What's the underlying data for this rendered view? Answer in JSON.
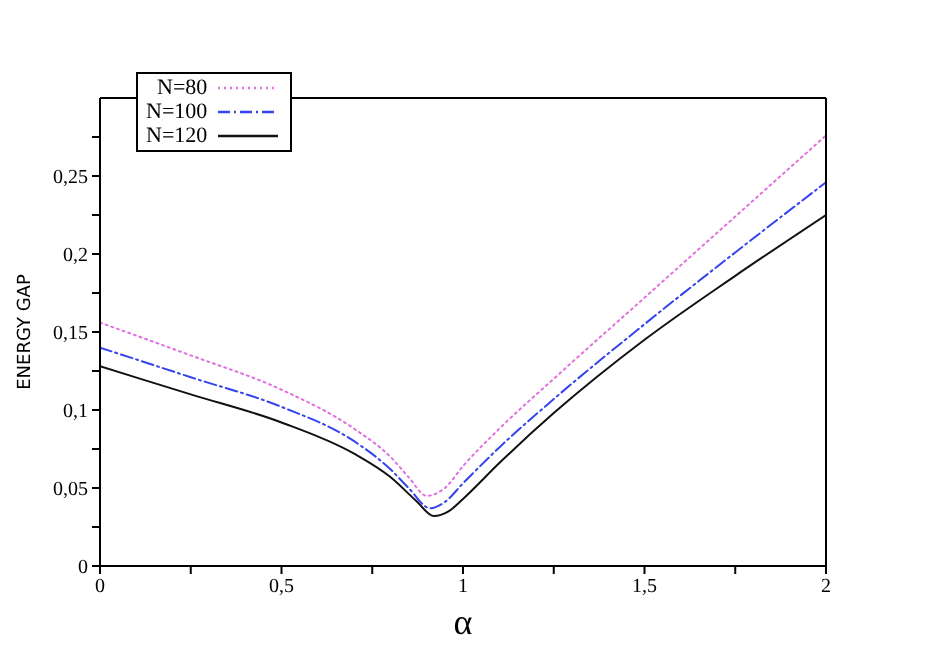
{
  "chart_data": {
    "type": "line",
    "xlabel": "α",
    "ylabel": "ENERGY GAP",
    "xlim": [
      0,
      2
    ],
    "ylim": [
      0,
      0.3
    ],
    "xticks": [
      {
        "value": 0,
        "label": "0"
      },
      {
        "value": 0.25,
        "label": null
      },
      {
        "value": 0.5,
        "label": "0,5"
      },
      {
        "value": 0.75,
        "label": null
      },
      {
        "value": 1,
        "label": "1"
      },
      {
        "value": 1.25,
        "label": null
      },
      {
        "value": 1.5,
        "label": "1,5"
      },
      {
        "value": 1.75,
        "label": null
      },
      {
        "value": 2,
        "label": "2"
      }
    ],
    "yticks": [
      {
        "value": 0,
        "label": "0"
      },
      {
        "value": 0.025,
        "label": null
      },
      {
        "value": 0.05,
        "label": "0,05"
      },
      {
        "value": 0.075,
        "label": null
      },
      {
        "value": 0.1,
        "label": "0,1"
      },
      {
        "value": 0.125,
        "label": null
      },
      {
        "value": 0.15,
        "label": "0,15"
      },
      {
        "value": 0.175,
        "label": null
      },
      {
        "value": 0.2,
        "label": "0,2"
      },
      {
        "value": 0.225,
        "label": null
      },
      {
        "value": 0.25,
        "label": "0,25"
      },
      {
        "value": 0.275,
        "label": null
      }
    ],
    "legend": "top left",
    "marker": "none",
    "series": [
      {
        "name": "N=80",
        "color": "#e070e0",
        "line_style": "dotted",
        "x": [
          0,
          0.25,
          0.5,
          0.7,
          0.8,
          0.85,
          0.9,
          0.95,
          1.0,
          1.1,
          1.25,
          1.5,
          1.75,
          2
        ],
        "values": [
          0.156,
          0.135,
          0.113,
          0.088,
          0.07,
          0.057,
          0.045,
          0.05,
          0.064,
          0.088,
          0.12,
          0.172,
          0.224,
          0.276
        ]
      },
      {
        "name": "N=100",
        "color": "#3344ee",
        "line_style": "dashed",
        "x": [
          0,
          0.25,
          0.5,
          0.7,
          0.8,
          0.85,
          0.91,
          0.95,
          1.0,
          1.1,
          1.25,
          1.5,
          1.75,
          2
        ],
        "values": [
          0.14,
          0.121,
          0.102,
          0.08,
          0.062,
          0.05,
          0.037,
          0.041,
          0.053,
          0.076,
          0.107,
          0.155,
          0.201,
          0.246
        ]
      },
      {
        "name": "N=120",
        "color": "#111111",
        "line_style": "solid",
        "x": [
          0,
          0.25,
          0.5,
          0.7,
          0.8,
          0.87,
          0.92,
          0.96,
          1.0,
          1.1,
          1.25,
          1.5,
          1.75,
          2
        ],
        "values": [
          0.128,
          0.11,
          0.092,
          0.072,
          0.057,
          0.042,
          0.032,
          0.035,
          0.043,
          0.066,
          0.098,
          0.145,
          0.186,
          0.225
        ]
      }
    ]
  }
}
